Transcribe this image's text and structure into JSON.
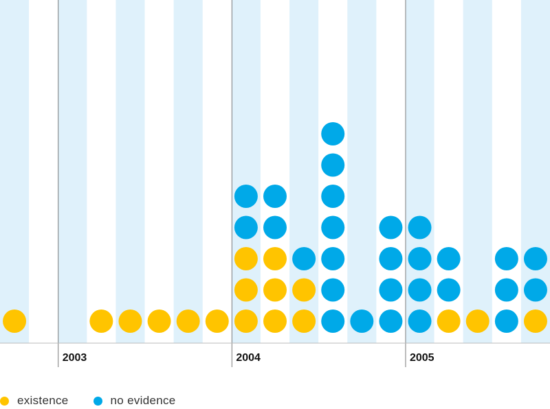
{
  "chart_data": {
    "type": "dot-column",
    "columns_per_year": 6,
    "year_labels": [
      "2003",
      "2004",
      "2005"
    ],
    "series": [
      {
        "name": "existence",
        "color": "#FFC400"
      },
      {
        "name": "no evidence",
        "color": "#00A9E8"
      }
    ],
    "stripe_color": "#DFF1FB",
    "columns": [
      {
        "existence": 1,
        "no_evidence": 0
      },
      {
        "existence": 0,
        "no_evidence": 0
      },
      {
        "existence": 0,
        "no_evidence": 0
      },
      {
        "existence": 1,
        "no_evidence": 0
      },
      {
        "existence": 1,
        "no_evidence": 0
      },
      {
        "existence": 1,
        "no_evidence": 0
      },
      {
        "existence": 1,
        "no_evidence": 0
      },
      {
        "existence": 1,
        "no_evidence": 0
      },
      {
        "existence": 3,
        "no_evidence": 2
      },
      {
        "existence": 3,
        "no_evidence": 2
      },
      {
        "existence": 2,
        "no_evidence": 1
      },
      {
        "existence": 0,
        "no_evidence": 7
      },
      {
        "existence": 0,
        "no_evidence": 1
      },
      {
        "existence": 0,
        "no_evidence": 4
      },
      {
        "existence": 0,
        "no_evidence": 4
      },
      {
        "existence": 1,
        "no_evidence": 2
      },
      {
        "existence": 1,
        "no_evidence": 0
      },
      {
        "existence": 0,
        "no_evidence": 3
      },
      {
        "existence": 1,
        "no_evidence": 2
      }
    ]
  },
  "legend": {
    "items": [
      {
        "label": "existence",
        "color": "#FFC400"
      },
      {
        "label": "no evidence",
        "color": "#00A9E8"
      }
    ]
  }
}
